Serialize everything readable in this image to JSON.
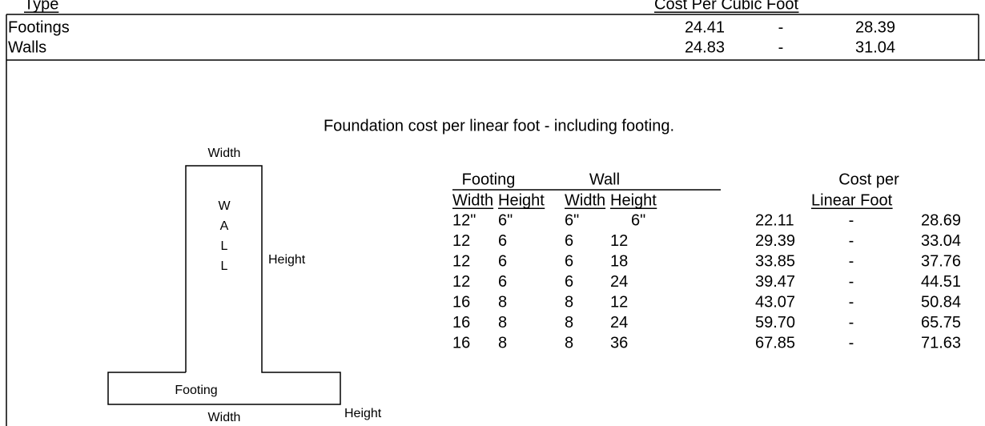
{
  "cost_per_cubic_foot": {
    "headers": [
      "Type",
      "Cost Per Cubic Foot"
    ],
    "rows": [
      [
        "Footings",
        "24.41",
        "-",
        "28.39"
      ],
      [
        "Walls",
        "24.83",
        "-",
        "31.04"
      ]
    ]
  },
  "foundation": {
    "title": "Foundation cost per linear foot - including footing.",
    "group_headers": [
      "Footing",
      "Wall",
      "Cost per"
    ],
    "column_headers": [
      "Width",
      "Height",
      "Width",
      "Height",
      "Linear Foot"
    ],
    "rows": [
      [
        "12\"",
        "6\"",
        "6\"",
        "6\"",
        "22.11",
        "-",
        "28.69"
      ],
      [
        "12",
        "6",
        "6",
        "12",
        "29.39",
        "-",
        "33.04"
      ],
      [
        "12",
        "6",
        "6",
        "18",
        "33.85",
        "-",
        "37.76"
      ],
      [
        "12",
        "6",
        "6",
        "24",
        "39.47",
        "-",
        "44.51"
      ],
      [
        "16",
        "8",
        "8",
        "12",
        "43.07",
        "-",
        "50.84"
      ],
      [
        "16",
        "8",
        "8",
        "24",
        "59.70",
        "-",
        "65.75"
      ],
      [
        "16",
        "8",
        "8",
        "36",
        "67.85",
        "-",
        "71.63"
      ]
    ]
  },
  "diagram": {
    "labels": [
      "Width",
      "W",
      "A",
      "L",
      "L",
      "Height",
      "Footing",
      "Height",
      "Width"
    ]
  }
}
